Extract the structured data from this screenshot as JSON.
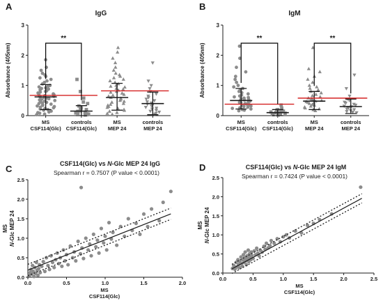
{
  "colors": {
    "dot": "#8c8c8c",
    "dot_light": "#a6a6a6",
    "axis": "#1a1a1a",
    "cutoff": "#d42020",
    "bracket": "#000000"
  },
  "chart_data": [
    {
      "panel": "A",
      "type": "scatter",
      "subtype": "dot-plot",
      "title": "IgG",
      "ylabel": "Absorbance (405nm)",
      "ylim": [
        0,
        3
      ],
      "yticks": [
        "0",
        "1",
        "2",
        "3"
      ],
      "categories": [
        {
          "line1": "MS",
          "line2": "CSF114(Glc)"
        },
        {
          "line1": "controls",
          "line2": "CSF114(Glc)"
        },
        {
          "line1": "MS",
          "line2": "MEP 24"
        },
        {
          "line1": "controls",
          "line2": "MEP 24"
        }
      ],
      "marker_shapes": [
        "circle",
        "square",
        "triangle-up",
        "triangle-down"
      ],
      "groups": [
        {
          "mean": 0.62,
          "sd_low": 0.2,
          "sd_high": 1.03,
          "values": [
            1.85,
            1.6,
            1.5,
            1.4,
            1.35,
            1.3,
            1.25,
            1.2,
            1.15,
            1.1,
            1.05,
            1.0,
            0.98,
            0.95,
            0.92,
            0.9,
            0.88,
            0.85,
            0.82,
            0.8,
            0.78,
            0.75,
            0.72,
            0.7,
            0.68,
            0.66,
            0.64,
            0.62,
            0.6,
            0.58,
            0.56,
            0.54,
            0.52,
            0.5,
            0.48,
            0.46,
            0.44,
            0.42,
            0.4,
            0.38,
            0.36,
            0.34,
            0.32,
            0.3,
            0.28,
            0.26,
            0.24,
            0.22,
            0.2,
            0.18,
            0.15,
            0.12,
            0.1,
            0.08,
            0.05,
            0.03
          ]
        },
        {
          "mean": 0.15,
          "sd_low": 0.0,
          "sd_high": 0.33,
          "values": [
            1.2,
            0.8,
            0.58,
            0.45,
            0.4,
            0.32,
            0.28,
            0.25,
            0.22,
            0.2,
            0.18,
            0.16,
            0.14,
            0.12,
            0.1,
            0.09,
            0.08,
            0.07,
            0.06,
            0.05,
            0.04,
            0.03,
            0.02
          ]
        },
        {
          "mean": 0.6,
          "sd_low": 0.18,
          "sd_high": 1.07,
          "values": [
            2.25,
            2.1,
            1.9,
            1.75,
            1.6,
            1.5,
            1.4,
            1.35,
            1.3,
            1.25,
            1.2,
            1.15,
            1.1,
            1.05,
            1.0,
            0.97,
            0.94,
            0.9,
            0.87,
            0.84,
            0.8,
            0.77,
            0.74,
            0.7,
            0.67,
            0.64,
            0.6,
            0.57,
            0.54,
            0.5,
            0.47,
            0.44,
            0.4,
            0.37,
            0.34,
            0.3,
            0.27,
            0.24,
            0.2,
            0.17,
            0.14,
            0.1,
            0.07,
            0.04
          ]
        },
        {
          "mean": 0.4,
          "sd_low": 0.03,
          "sd_high": 0.78,
          "values": [
            1.75,
            1.15,
            1.0,
            0.9,
            0.8,
            0.72,
            0.65,
            0.6,
            0.55,
            0.5,
            0.46,
            0.42,
            0.38,
            0.35,
            0.32,
            0.28,
            0.25,
            0.22,
            0.18,
            0.15,
            0.12,
            0.08,
            0.05
          ]
        }
      ],
      "cutoffs": [
        {
          "from_group": 0,
          "to_group": 1,
          "value": 0.67
        },
        {
          "from_group": 2,
          "to_group": 3,
          "value": 0.82
        }
      ],
      "brackets": [
        {
          "from_group": 0,
          "to_group": 1,
          "label": "**",
          "y": 2.4
        }
      ]
    },
    {
      "panel": "B",
      "type": "scatter",
      "subtype": "dot-plot",
      "title": "IgM",
      "ylabel": "Absorbance (405nm)",
      "ylim": [
        0,
        3
      ],
      "yticks": [
        "0",
        "1",
        "2",
        "3"
      ],
      "categories": [
        {
          "line1": "MS",
          "line2": "CSF114(Glc)"
        },
        {
          "line1": "controls",
          "line2": "CSF114(Glc)"
        },
        {
          "line1": "MS",
          "line2": "MEP 24"
        },
        {
          "line1": "controls",
          "line2": "MEP 24"
        }
      ],
      "marker_shapes": [
        "circle",
        "square",
        "triangle-up",
        "triangle-down"
      ],
      "groups": [
        {
          "mean": 0.5,
          "sd_low": 0.22,
          "sd_high": 0.9,
          "values": [
            2.3,
            1.9,
            1.6,
            1.45,
            1.3,
            1.2,
            1.1,
            1.0,
            0.95,
            0.9,
            0.85,
            0.8,
            0.76,
            0.72,
            0.68,
            0.65,
            0.62,
            0.6,
            0.58,
            0.56,
            0.54,
            0.52,
            0.5,
            0.48,
            0.46,
            0.44,
            0.42,
            0.4,
            0.38,
            0.36,
            0.34,
            0.32,
            0.3,
            0.28,
            0.26,
            0.24,
            0.22,
            0.2,
            0.18,
            0.16
          ]
        },
        {
          "mean": 0.1,
          "sd_low": 0.0,
          "sd_high": 0.2,
          "values": [
            0.35,
            0.25,
            0.2,
            0.18,
            0.15,
            0.13,
            0.12,
            0.1,
            0.09,
            0.08,
            0.07,
            0.06,
            0.05,
            0.04,
            0.03,
            0.02
          ]
        },
        {
          "mean": 0.48,
          "sd_low": 0.2,
          "sd_high": 0.8,
          "values": [
            2.25,
            1.55,
            1.45,
            1.3,
            1.2,
            1.1,
            1.0,
            0.95,
            0.9,
            0.85,
            0.8,
            0.75,
            0.7,
            0.66,
            0.62,
            0.58,
            0.55,
            0.52,
            0.5,
            0.48,
            0.46,
            0.44,
            0.42,
            0.4,
            0.37,
            0.34,
            0.31,
            0.28,
            0.25,
            0.22,
            0.19,
            0.16
          ]
        },
        {
          "mean": 0.3,
          "sd_low": 0.07,
          "sd_high": 0.55,
          "values": [
            1.35,
            0.9,
            0.65,
            0.55,
            0.5,
            0.45,
            0.42,
            0.38,
            0.35,
            0.32,
            0.3,
            0.28,
            0.25,
            0.22,
            0.2,
            0.17,
            0.14,
            0.12,
            0.1
          ]
        }
      ],
      "cutoffs": [
        {
          "from_group": 0,
          "to_group": 1,
          "value": 0.38
        },
        {
          "from_group": 2,
          "to_group": 3,
          "value": 0.58
        }
      ],
      "brackets": [
        {
          "from_group": 0,
          "to_group": 1,
          "label": "**",
          "y": 2.4
        },
        {
          "from_group": 2,
          "to_group": 3,
          "label": "**",
          "y": 2.4
        }
      ]
    },
    {
      "panel": "C",
      "type": "scatter",
      "title": "CSF114(Glc) vs N-Glc MEP 24  IgG",
      "title_parts": [
        "CSF114(Glc) vs ",
        "N",
        "-Glc MEP 24  IgG"
      ],
      "subtitle": "Spearman r = 0.7507 (P value < 0.0001)",
      "xlabel_lines": [
        "MS",
        "CSF114(Glc)"
      ],
      "ylabel_lines": [
        "MS",
        "N-Glc MEP 24"
      ],
      "ylabel_parts": [
        "N",
        "-Glc MEP 24"
      ],
      "xlim": [
        0,
        2.0
      ],
      "ylim": [
        0,
        2.5
      ],
      "xticks": [
        "0.0",
        "0.5",
        "1.0",
        "1.5",
        "2.0"
      ],
      "yticks": [
        "0.0",
        "0.5",
        "1.0",
        "1.5",
        "2.0",
        "2.5"
      ],
      "fit": {
        "slope": 0.78,
        "intercept": 0.18,
        "x_range": [
          0.0,
          1.85
        ]
      },
      "ci": {
        "upper_offset": 0.15,
        "lower_offset": -0.14
      },
      "points": [
        [
          0.02,
          0.05
        ],
        [
          0.03,
          0.12
        ],
        [
          0.04,
          0.2
        ],
        [
          0.05,
          0.08
        ],
        [
          0.06,
          0.3
        ],
        [
          0.07,
          0.15
        ],
        [
          0.08,
          0.02
        ],
        [
          0.09,
          0.25
        ],
        [
          0.1,
          0.1
        ],
        [
          0.11,
          0.38
        ],
        [
          0.12,
          0.18
        ],
        [
          0.13,
          0.05
        ],
        [
          0.14,
          0.22
        ],
        [
          0.15,
          0.32
        ],
        [
          0.16,
          0.12
        ],
        [
          0.18,
          0.28
        ],
        [
          0.2,
          0.4
        ],
        [
          0.22,
          0.15
        ],
        [
          0.24,
          0.5
        ],
        [
          0.26,
          0.3
        ],
        [
          0.28,
          0.2
        ],
        [
          0.3,
          0.55
        ],
        [
          0.32,
          0.38
        ],
        [
          0.34,
          0.25
        ],
        [
          0.36,
          0.45
        ],
        [
          0.38,
          0.62
        ],
        [
          0.4,
          0.35
        ],
        [
          0.42,
          0.5
        ],
        [
          0.44,
          0.28
        ],
        [
          0.46,
          0.7
        ],
        [
          0.48,
          0.42
        ],
        [
          0.5,
          0.58
        ],
        [
          0.52,
          0.32
        ],
        [
          0.55,
          0.8
        ],
        [
          0.58,
          0.5
        ],
        [
          0.6,
          0.65
        ],
        [
          0.62,
          0.42
        ],
        [
          0.65,
          0.92
        ],
        [
          0.68,
          0.6
        ],
        [
          0.69,
          2.3
        ],
        [
          0.7,
          0.75
        ],
        [
          0.72,
          0.48
        ],
        [
          0.75,
          1.0
        ],
        [
          0.78,
          0.7
        ],
        [
          0.8,
          0.85
        ],
        [
          0.82,
          0.55
        ],
        [
          0.85,
          1.1
        ],
        [
          0.88,
          0.78
        ],
        [
          0.9,
          0.95
        ],
        [
          0.92,
          0.62
        ],
        [
          0.95,
          1.25
        ],
        [
          0.98,
          0.88
        ],
        [
          1.0,
          1.05
        ],
        [
          1.02,
          0.7
        ],
        [
          1.05,
          1.4
        ],
        [
          1.08,
          0.98
        ],
        [
          1.1,
          1.15
        ],
        [
          1.15,
          0.82
        ],
        [
          1.2,
          1.3
        ],
        [
          1.25,
          1.05
        ],
        [
          1.3,
          1.5
        ],
        [
          1.35,
          1.2
        ],
        [
          1.4,
          1.38
        ],
        [
          1.45,
          1.1
        ],
        [
          1.5,
          1.62
        ],
        [
          1.55,
          1.3
        ],
        [
          1.6,
          1.75
        ],
        [
          1.7,
          1.45
        ],
        [
          1.75,
          1.92
        ],
        [
          1.85,
          2.2
        ]
      ]
    },
    {
      "panel": "D",
      "type": "scatter",
      "title": "CSF114(Glc) vs N-Glc MEP 24  IgM",
      "title_parts": [
        "CSF114(Glc) vs ",
        "N",
        "-Glc MEP 24  IgM"
      ],
      "subtitle": "Spearman r = 0.7424 (P value < 0.0001)",
      "xlabel_lines": [
        "MS",
        "CSF114(Glc)"
      ],
      "ylabel_lines": [
        "MS",
        "N-Glc MEP 24"
      ],
      "ylabel_parts": [
        "N",
        "-Glc MEP 24"
      ],
      "xlim": [
        0,
        2.5
      ],
      "ylim": [
        0,
        2.5
      ],
      "xticks": [
        "0.0",
        "0.5",
        "1.0",
        "1.5",
        "2.0",
        "2.5"
      ],
      "yticks": [
        "0.0",
        "0.5",
        "1.0",
        "1.5",
        "2.0",
        "2.5"
      ],
      "fit": {
        "slope": 0.86,
        "intercept": -0.02,
        "x_range": [
          0.15,
          2.3
        ]
      },
      "ci": {
        "upper_offset": 0.12,
        "lower_offset": -0.12
      },
      "points": [
        [
          0.16,
          0.12
        ],
        [
          0.18,
          0.2
        ],
        [
          0.2,
          0.1
        ],
        [
          0.22,
          0.28
        ],
        [
          0.23,
          0.16
        ],
        [
          0.25,
          0.35
        ],
        [
          0.26,
          0.22
        ],
        [
          0.27,
          0.14
        ],
        [
          0.28,
          0.3
        ],
        [
          0.3,
          0.42
        ],
        [
          0.31,
          0.25
        ],
        [
          0.32,
          0.18
        ],
        [
          0.33,
          0.35
        ],
        [
          0.34,
          0.48
        ],
        [
          0.35,
          0.28
        ],
        [
          0.36,
          0.4
        ],
        [
          0.37,
          0.55
        ],
        [
          0.38,
          0.32
        ],
        [
          0.39,
          0.22
        ],
        [
          0.4,
          0.45
        ],
        [
          0.41,
          0.38
        ],
        [
          0.42,
          0.6
        ],
        [
          0.43,
          0.3
        ],
        [
          0.44,
          0.5
        ],
        [
          0.45,
          0.42
        ],
        [
          0.46,
          0.35
        ],
        [
          0.47,
          0.55
        ],
        [
          0.48,
          0.46
        ],
        [
          0.5,
          0.38
        ],
        [
          0.52,
          0.58
        ],
        [
          0.54,
          0.48
        ],
        [
          0.56,
          0.65
        ],
        [
          0.58,
          0.52
        ],
        [
          0.6,
          0.45
        ],
        [
          0.62,
          0.6
        ],
        [
          0.65,
          0.55
        ],
        [
          0.68,
          0.7
        ],
        [
          0.7,
          0.62
        ],
        [
          0.72,
          0.78
        ],
        [
          0.75,
          0.66
        ],
        [
          0.78,
          0.72
        ],
        [
          0.8,
          0.85
        ],
        [
          0.85,
          0.78
        ],
        [
          0.9,
          0.9
        ],
        [
          0.95,
          0.82
        ],
        [
          1.0,
          0.95
        ],
        [
          1.05,
          1.0
        ],
        [
          1.1,
          0.92
        ],
        [
          1.2,
          1.1
        ],
        [
          1.3,
          1.05
        ],
        [
          1.4,
          1.25
        ],
        [
          1.5,
          1.3
        ],
        [
          1.6,
          1.4
        ],
        [
          1.8,
          1.55
        ],
        [
          2.28,
          2.25
        ]
      ]
    }
  ]
}
